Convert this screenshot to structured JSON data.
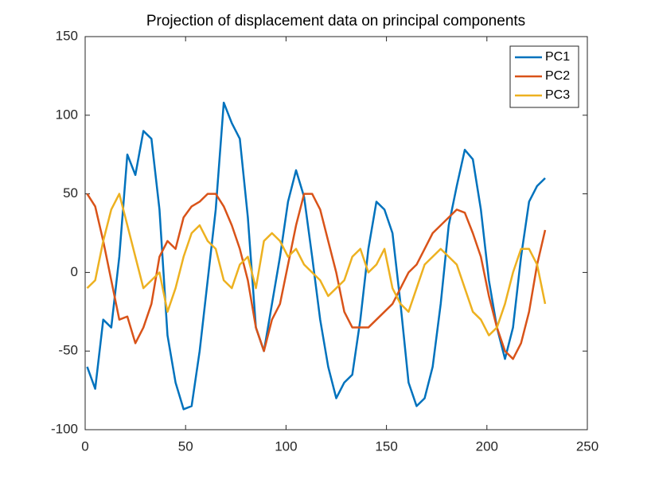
{
  "chart_data": {
    "type": "line",
    "title": "Projection of displacement data on principal components",
    "x": [
      1,
      5,
      9,
      13,
      17,
      21,
      25,
      29,
      33,
      37,
      41,
      45,
      49,
      53,
      57,
      61,
      65,
      69,
      73,
      77,
      81,
      85,
      89,
      93,
      97,
      101,
      105,
      109,
      113,
      117,
      121,
      125,
      129,
      133,
      137,
      141,
      145,
      149,
      153,
      157,
      161,
      165,
      169,
      173,
      177,
      181,
      185,
      189,
      193,
      197,
      201,
      205,
      209,
      213,
      217,
      221,
      225,
      229
    ],
    "series": [
      {
        "name": "PC1",
        "color": "#0072BD",
        "values": [
          -60,
          -74,
          -30,
          -35,
          10,
          75,
          62,
          90,
          85,
          40,
          -40,
          -70,
          -87,
          -85,
          -50,
          -5,
          40,
          108,
          95,
          85,
          35,
          -35,
          -50,
          -20,
          10,
          45,
          65,
          48,
          10,
          -30,
          -60,
          -80,
          -70,
          -65,
          -30,
          15,
          45,
          40,
          25,
          -20,
          -70,
          -85,
          -80,
          -60,
          -20,
          30,
          55,
          78,
          72,
          40,
          -5,
          -35,
          -55,
          -35,
          10,
          45,
          55,
          60
        ]
      },
      {
        "name": "PC2",
        "color": "#D95319",
        "values": [
          50,
          42,
          20,
          -5,
          -30,
          -28,
          -45,
          -35,
          -20,
          10,
          20,
          15,
          35,
          42,
          45,
          50,
          50,
          42,
          30,
          15,
          -5,
          -35,
          -50,
          -30,
          -20,
          5,
          30,
          50,
          50,
          40,
          20,
          0,
          -25,
          -35,
          -35,
          -35,
          -30,
          -25,
          -20,
          -10,
          0,
          5,
          15,
          25,
          30,
          35,
          40,
          38,
          25,
          10,
          -15,
          -35,
          -50,
          -55,
          -45,
          -25,
          5,
          27
        ]
      },
      {
        "name": "PC3",
        "color": "#EDB120",
        "values": [
          -10,
          -5,
          20,
          40,
          50,
          30,
          10,
          -10,
          -5,
          0,
          -25,
          -10,
          10,
          25,
          30,
          20,
          15,
          -5,
          -10,
          5,
          10,
          -10,
          20,
          25,
          20,
          10,
          15,
          5,
          0,
          -5,
          -15,
          -10,
          -5,
          10,
          15,
          0,
          5,
          15,
          -10,
          -20,
          -25,
          -10,
          5,
          10,
          15,
          10,
          5,
          -10,
          -25,
          -30,
          -40,
          -35,
          -20,
          0,
          15,
          15,
          5,
          -20
        ]
      }
    ],
    "xlim": [
      0,
      250
    ],
    "xticks": [
      0,
      50,
      100,
      150,
      200,
      250
    ],
    "ylim": [
      -100,
      150
    ],
    "yticks": [
      -100,
      -50,
      0,
      50,
      100,
      150
    ],
    "legend": "northeast"
  }
}
